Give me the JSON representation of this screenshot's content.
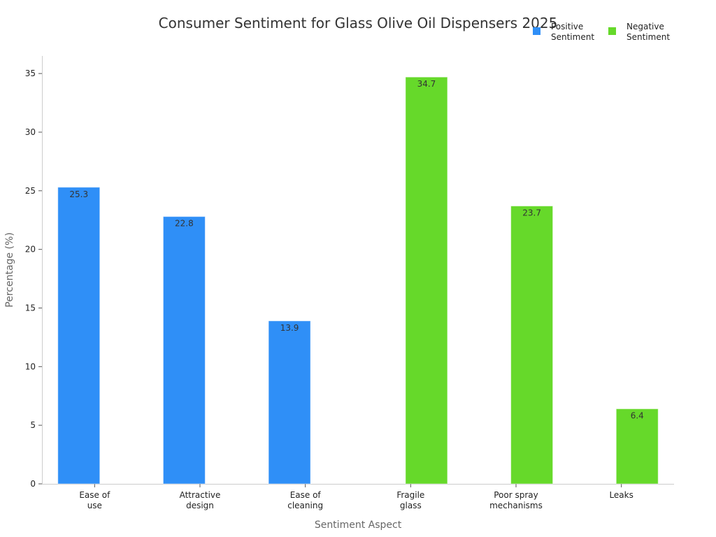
{
  "chart_data": {
    "type": "bar",
    "title": "Consumer Sentiment for Glass Olive Oil Dispensers 2025",
    "xlabel": "Sentiment Aspect",
    "ylabel": "Percentage (%)",
    "ylim": [
      0,
      36.5
    ],
    "yticks": [
      0,
      5,
      10,
      15,
      20,
      25,
      30,
      35
    ],
    "grid": false,
    "legend_position": "top-right",
    "categories": [
      [
        "Ease of",
        "use"
      ],
      [
        "Attractive",
        "design"
      ],
      [
        "Ease of",
        "cleaning"
      ],
      [
        "Fragile",
        "glass"
      ],
      [
        "Poor spray",
        "mechanisms"
      ],
      [
        "Leaks"
      ]
    ],
    "series": [
      {
        "name": "Positive Sentiment",
        "legend_lines": [
          "Positive",
          "Sentiment"
        ],
        "color": "#2f8ff7",
        "values": [
          25.3,
          22.8,
          13.9,
          null,
          null,
          null
        ]
      },
      {
        "name": "Negative Sentiment",
        "legend_lines": [
          "Negative",
          "Sentiment"
        ],
        "color": "#66d92a",
        "values": [
          null,
          null,
          null,
          34.7,
          23.7,
          6.4
        ]
      }
    ]
  }
}
